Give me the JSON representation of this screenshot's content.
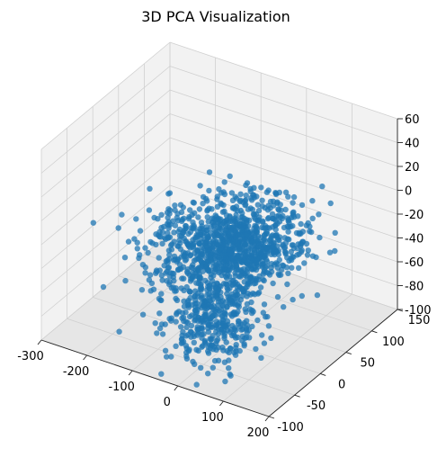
{
  "chart_data": {
    "type": "scatter",
    "title": "3D PCA Visualization",
    "projection": "3d",
    "grid": true,
    "series": [
      {
        "color": "#1f77b4",
        "marker": "circle",
        "clusters": [
          {
            "center": [
              0,
              0,
              -20
            ],
            "spread": [
              65,
              45,
              12
            ],
            "count": 1150
          },
          {
            "center": [
              -20,
              -10,
              -82
            ],
            "spread": [
              38,
              28,
              14
            ],
            "count": 340
          }
        ],
        "alpha": 0.75
      }
    ],
    "axes": {
      "x": {
        "label": "",
        "lim": [
          -300,
          200
        ],
        "ticks": [
          -300,
          -200,
          -100,
          0,
          100,
          200
        ]
      },
      "y": {
        "label": "",
        "lim": [
          -100,
          150
        ],
        "ticks": [
          -100,
          -50,
          0,
          50,
          100,
          150
        ]
      },
      "z": {
        "label": "",
        "lim": [
          -100,
          60
        ],
        "ticks": [
          -100,
          -80,
          -60,
          -40,
          -20,
          0,
          20,
          40,
          60
        ]
      }
    },
    "colors": {
      "points": "#1f77b4",
      "pane_back": "#f2f2f2",
      "pane_side": "#f2f2f2",
      "pane_floor": "#e6e6e6",
      "grid": "#d0d0d0"
    }
  }
}
